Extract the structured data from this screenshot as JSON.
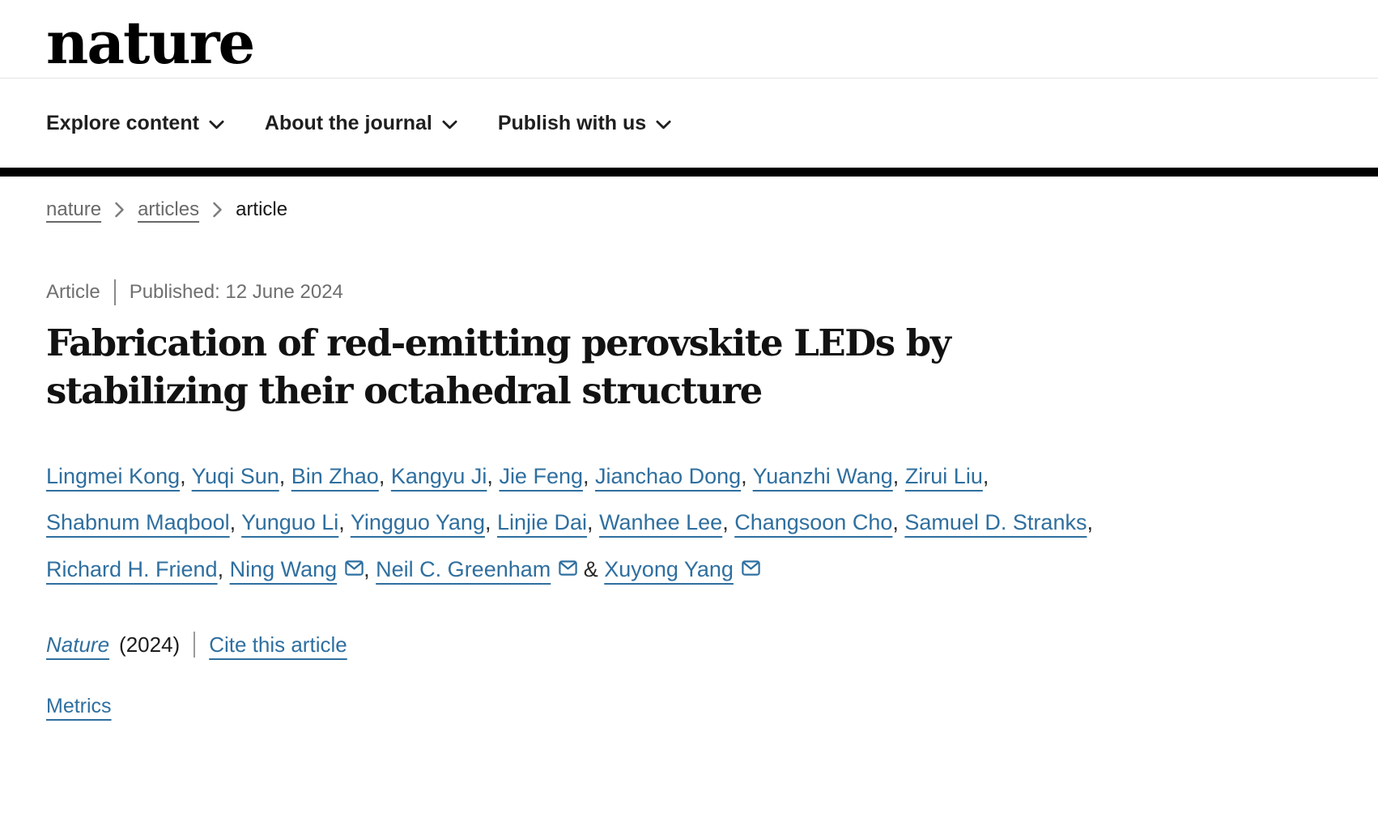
{
  "colors": {
    "link_blue": "#2f6f9f",
    "nav_text": "#1f1f1f",
    "muted_gray": "#6f6f6f",
    "bar_black": "#000000"
  },
  "header": {
    "logo": "nature",
    "nav_items": [
      {
        "id": "explore-content",
        "label": "Explore content"
      },
      {
        "id": "about-the-journal",
        "label": "About the journal"
      },
      {
        "id": "publish-with-us",
        "label": "Publish with us"
      }
    ]
  },
  "breadcrumb": {
    "items": [
      {
        "id": "nature",
        "label": "nature",
        "link": true
      },
      {
        "id": "articles",
        "label": "articles",
        "link": true
      },
      {
        "id": "article",
        "label": "article",
        "link": false
      }
    ]
  },
  "article": {
    "type_label": "Article",
    "published": "Published: 12 June 2024",
    "title": "Fabrication of red-emitting perovskite LEDs by stabilizing their octahedral structure",
    "authors": [
      {
        "name": "Lingmei Kong",
        "email": false
      },
      {
        "name": "Yuqi Sun",
        "email": false
      },
      {
        "name": "Bin Zhao",
        "email": false
      },
      {
        "name": "Kangyu Ji",
        "email": false
      },
      {
        "name": "Jie Feng",
        "email": false
      },
      {
        "name": "Jianchao Dong",
        "email": false
      },
      {
        "name": "Yuanzhi Wang",
        "email": false
      },
      {
        "name": "Zirui Liu",
        "email": false
      },
      {
        "name": "Shabnum Maqbool",
        "email": false
      },
      {
        "name": "Yunguo Li",
        "email": false
      },
      {
        "name": "Yingguo Yang",
        "email": false
      },
      {
        "name": "Linjie Dai",
        "email": false
      },
      {
        "name": "Wanhee Lee",
        "email": false
      },
      {
        "name": "Changsoon Cho",
        "email": false
      },
      {
        "name": "Samuel D. Stranks",
        "email": false
      },
      {
        "name": "Richard H. Friend",
        "email": false
      },
      {
        "name": "Ning Wang",
        "email": true
      },
      {
        "name": "Neil C. Greenham",
        "email": true
      },
      {
        "name": "Xuyong Yang",
        "email": true
      }
    ],
    "email_icon": "envelope-icon"
  },
  "citation": {
    "journal": "Nature",
    "year": "(2024)",
    "cite_label": "Cite this article"
  },
  "metrics_label": "Metrics"
}
